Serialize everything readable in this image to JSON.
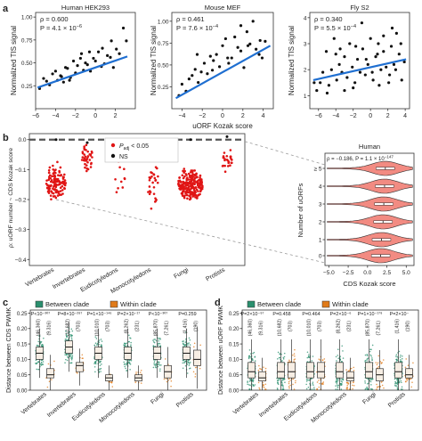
{
  "panels": {
    "a": {
      "letter": "a",
      "xlabel": "uORF Kozak score",
      "ylabel": "Normalized TIS signal",
      "subplots": [
        {
          "title": "Human HEK293",
          "rho": "ρ = 0.600",
          "p_prefix": "P = 4.1 × 10",
          "p_exp": "−6",
          "xlim": [
            -6,
            4
          ],
          "xticks": [
            -6,
            -4,
            -2,
            0,
            2
          ],
          "ylim": [
            0,
            1.05
          ],
          "yticks": [
            0.25,
            0.5,
            0.75,
            1.0
          ],
          "ytick_labels": [
            "0.25",
            "0.50",
            "0.75",
            "1.00"
          ],
          "fit": [
            [
              -5.8,
              0.23
            ],
            [
              3.2,
              0.57
            ]
          ]
        },
        {
          "title": "Mouse MEF",
          "rho": "ρ = 0.461",
          "p_prefix": "P = 7.6 × 10",
          "p_exp": "−4",
          "xlim": [
            -5,
            5
          ],
          "xticks": [
            -4,
            -2,
            0,
            2,
            4
          ],
          "ylim": [
            0,
            1.1
          ],
          "yticks": [
            0.25,
            0.5,
            0.75,
            1.0
          ],
          "ytick_labels": [
            "0.25",
            "0.50",
            "0.75",
            "1.00"
          ],
          "fit": [
            [
              -4.6,
              0.12
            ],
            [
              4.7,
              0.72
            ]
          ]
        },
        {
          "title": "Fly S2",
          "rho": "ρ = 0.340",
          "p_prefix": "P = 5.5 × 10",
          "p_exp": "−4",
          "xlim": [
            -7,
            4.5
          ],
          "xticks": [
            -6,
            -4,
            -2,
            0,
            2,
            4
          ],
          "ylim": [
            0.5,
            4.2
          ],
          "yticks": [
            1,
            2,
            3,
            4
          ],
          "ytick_labels": [
            "1",
            "2",
            "3",
            "4"
          ],
          "fit": [
            [
              -6.6,
              1.6
            ],
            [
              4.1,
              2.4
            ]
          ]
        }
      ]
    },
    "b": {
      "letter": "b",
      "ylabel": "ρ: uORF number ~ CDS Kozak score",
      "yticks": [
        "0.0",
        "−0.1",
        "−0.2",
        "−0.3",
        "−0.4"
      ],
      "legend_padj": "P",
      "legend_padj_sub": "adj",
      "legend_padj_rest": " < 0.05",
      "legend_ns": "NS",
      "groups": [
        "Vertebrates",
        "Invertebrates",
        "Eudicotyledons",
        "Monocotyledons",
        "Fungi",
        "Protists"
      ],
      "inset": {
        "title": "Human",
        "stat": "ρ = −0.186,  P = 1.1 × 10",
        "stat_exp": "−147",
        "xlabel": "CDS Kozak score",
        "ylabel": "Number of uORFs",
        "yticks": [
          "≥ 5",
          "4",
          "3",
          "2",
          "1",
          "0"
        ],
        "xticks": [
          "−5.0",
          "−2.5",
          "0.0",
          "2.5",
          "5.0"
        ]
      }
    },
    "c": {
      "letter": "c",
      "ylabel": "Distance between CDS PWMK",
      "legend_between": "Between clade",
      "legend_within": "Within clade",
      "yticks": [
        "0.00",
        "0.05",
        "0.10",
        "0.15",
        "0.20",
        "0.25"
      ],
      "groups": [
        "Vertebrates",
        "Invertebrates",
        "Eudicotyledons",
        "Monocotyledons",
        "Fungi",
        "Protists"
      ],
      "pvalues": [
        "P<10⁻³⁰⁷",
        "P=8×10⁻²⁹⁷",
        "P=1×10⁻¹⁴⁶",
        "P=2×10⁻¹⁷",
        "P<10⁻³⁰⁷",
        "P=0.259"
      ],
      "counts_between": [
        "(46,360)",
        "(10,682)",
        "(10,010)",
        "(8,262)",
        "(85,870)",
        "(1,416)"
      ],
      "counts_within": [
        "(9,316)",
        "(703)",
        "(703)",
        "(231)",
        "(7,261)",
        "(190)"
      ]
    },
    "d": {
      "letter": "d",
      "ylabel": "Distance between uORF PWMK",
      "legend_between": "Between clade",
      "legend_within": "Within clade",
      "yticks": [
        "0.00",
        "0.05",
        "0.10",
        "0.15",
        "0.20",
        "0.25"
      ],
      "groups": [
        "Vertebrates",
        "Invertebrates",
        "Eudicotyledons",
        "Monocotyledons",
        "Fungi",
        "Protists"
      ],
      "pvalues": [
        "P=2×10⁻⁹⁷",
        "P=0.458",
        "P=0.464",
        "P=2×10⁻⁶",
        "P=1×10⁻¹⁷⁹",
        "P=2×10⁻"
      ],
      "counts_between": [
        "(46,360)",
        "(10,682)",
        "(10,010)",
        "(8,262)",
        "(85,870)",
        "(1,416)"
      ],
      "counts_within": [
        "(9,316)",
        "(703)",
        "(703)",
        "(231)",
        "(7,261)",
        "(190)"
      ]
    }
  },
  "colors": {
    "blue": "#1f6fd1",
    "red": "#e01515",
    "black": "#111111",
    "salmon": "#f28b82",
    "green": "#2a8f6e",
    "orange": "#e07b1a",
    "box_fill": "#f7eee4",
    "grey": "#9a9a9a"
  },
  "chart_data": [
    {
      "type": "scatter",
      "title": "Human HEK293",
      "xlabel": "uORF Kozak score",
      "ylabel": "Normalized TIS signal",
      "series": [
        {
          "name": "",
          "x": [
            -5.6,
            -5.2,
            -4.9,
            -4.6,
            -4.3,
            -4.0,
            -3.8,
            -3.5,
            -3.2,
            -3.0,
            -2.8,
            -2.5,
            -2.2,
            -2.0,
            -1.8,
            -1.5,
            -1.2,
            -1.0,
            -0.8,
            -0.5,
            -0.2,
            0.0,
            0.3,
            0.6,
            0.9,
            1.2,
            1.5,
            1.8,
            2.1,
            2.4,
            2.8,
            3.1,
            -1.4,
            -0.6,
            0.7,
            1.6,
            -2.6,
            -3.4
          ],
          "y": [
            0.22,
            0.33,
            0.3,
            0.26,
            0.38,
            0.41,
            0.31,
            0.36,
            0.29,
            0.45,
            0.44,
            0.34,
            0.52,
            0.39,
            0.47,
            0.55,
            0.42,
            0.5,
            0.48,
            0.41,
            0.55,
            0.52,
            0.62,
            0.46,
            0.49,
            0.58,
            0.56,
            0.45,
            0.65,
            0.6,
            0.88,
            0.74,
            0.6,
            0.62,
            0.66,
            0.74,
            0.31,
            0.35
          ]
        }
      ]
    },
    {
      "type": "scatter",
      "title": "Mouse MEF",
      "xlabel": "uORF Kozak score",
      "ylabel": "Normalized TIS signal",
      "series": [
        {
          "name": "",
          "x": [
            -4.3,
            -4.0,
            -3.6,
            -3.3,
            -3.0,
            -2.7,
            -2.4,
            -2.1,
            -1.8,
            -1.5,
            -1.2,
            -0.9,
            -0.6,
            -0.3,
            0.0,
            0.3,
            0.6,
            0.9,
            1.2,
            1.5,
            1.8,
            2.1,
            2.4,
            2.7,
            3.0,
            3.3,
            3.6,
            3.9,
            4.2,
            -1.0,
            0.5,
            1.8,
            -2.5,
            2.5,
            3.7
          ],
          "y": [
            0.15,
            0.28,
            0.2,
            0.34,
            0.38,
            0.45,
            0.3,
            0.42,
            0.52,
            0.4,
            0.6,
            0.55,
            0.62,
            0.48,
            0.72,
            0.8,
            0.52,
            0.58,
            0.82,
            0.7,
            0.66,
            0.47,
            0.88,
            0.74,
            1.0,
            0.68,
            0.62,
            0.58,
            0.77,
            0.44,
            0.58,
            0.95,
            0.62,
            0.72,
            0.78
          ]
        }
      ]
    },
    {
      "type": "scatter",
      "title": "Fly S2",
      "xlabel": "uORF Kozak score",
      "ylabel": "Normalized TIS signal",
      "series": [
        {
          "name": "",
          "x": [
            -6.2,
            -5.8,
            -5.5,
            -5.1,
            -4.8,
            -4.5,
            -4.2,
            -3.9,
            -3.6,
            -3.3,
            -3.0,
            -2.7,
            -2.4,
            -2.1,
            -1.8,
            -1.5,
            -1.2,
            -0.9,
            -0.6,
            -0.3,
            0.0,
            0.3,
            0.6,
            0.9,
            1.2,
            1.5,
            1.8,
            2.1,
            2.4,
            2.7,
            3.0,
            3.3,
            3.6,
            3.9,
            -5.0,
            -3.0,
            -1.0,
            0.8,
            2.2,
            -4.0,
            -2.0,
            1.5,
            3.5,
            -0.5,
            2.9,
            -6.5,
            -3.5,
            0.2,
            1.0,
            -1.7,
            2.5
          ],
          "y": [
            1.2,
            1.5,
            1.9,
            2.7,
            1.4,
            2.0,
            3.2,
            1.6,
            2.2,
            1.9,
            2.5,
            1.7,
            3.0,
            2.1,
            1.5,
            2.4,
            1.9,
            2.8,
            1.8,
            2.2,
            3.2,
            1.6,
            2.5,
            3.0,
            2.0,
            3.3,
            2.1,
            1.5,
            2.9,
            2.2,
            3.4,
            2.6,
            1.6,
            2.3,
            1.1,
            1.2,
            3.8,
            2.6,
            1.8,
            2.6,
            1.3,
            2.7,
            3.0,
            2.4,
            2.0,
            1.5,
            2.8,
            1.9,
            1.4,
            2.9,
            3.6
          ]
        }
      ]
    },
    {
      "type": "scatter",
      "title": "",
      "ylabel": "ρ: uORF number ~ CDS Kozak score",
      "categories": [
        "Vertebrates",
        "Invertebrates",
        "Eudicotyledons",
        "Monocotyledons",
        "Fungi",
        "Protists"
      ],
      "series": [
        {
          "name": "Padj < 0.05",
          "median": [
            -0.14,
            -0.06,
            -0.13,
            -0.15,
            -0.15,
            -0.07
          ],
          "min": [
            -0.38,
            -0.16,
            -0.21,
            -0.38,
            -0.35,
            -0.2
          ],
          "max": [
            -0.03,
            0.0,
            -0.03,
            -0.04,
            -0.04,
            -0.03
          ]
        },
        {
          "name": "NS",
          "values": [
            0.0,
            -0.01,
            0.0,
            0.0,
            0.0,
            0.01
          ]
        }
      ],
      "ylim": [
        -0.42,
        0.02
      ]
    },
    {
      "type": "violin",
      "title": "Human",
      "xlabel": "CDS Kozak score",
      "ylabel": "Number of uORFs",
      "categories": [
        "0",
        "1",
        "2",
        "3",
        "4",
        "≥ 5"
      ],
      "medians": [
        1.7,
        1.8,
        2.0,
        2.1,
        2.2,
        2.3
      ],
      "xlim": [
        -5.5,
        6
      ]
    },
    {
      "type": "box",
      "title": "",
      "ylabel": "Distance between CDS PWMK",
      "categories": [
        "Vertebrates",
        "Invertebrates",
        "Eudicotyledons",
        "Monocotyledons",
        "Fungi",
        "Protists"
      ],
      "series": [
        {
          "name": "Between clade",
          "median": [
            0.12,
            0.14,
            0.12,
            0.12,
            0.12,
            0.12
          ],
          "q1": [
            0.1,
            0.12,
            0.1,
            0.1,
            0.1,
            0.1
          ],
          "q3": [
            0.14,
            0.16,
            0.14,
            0.14,
            0.14,
            0.14
          ]
        },
        {
          "name": "Within clade",
          "median": [
            0.05,
            0.08,
            0.04,
            0.04,
            0.06,
            0.1
          ],
          "q1": [
            0.04,
            0.06,
            0.03,
            0.03,
            0.04,
            0.08
          ],
          "q3": [
            0.07,
            0.09,
            0.05,
            0.05,
            0.08,
            0.13
          ]
        }
      ],
      "ylim": [
        0,
        0.25
      ]
    },
    {
      "type": "box",
      "title": "",
      "ylabel": "Distance between uORF PWMK",
      "categories": [
        "Vertebrates",
        "Invertebrates",
        "Eudicotyledons",
        "Monocotyledons",
        "Fungi",
        "Protists"
      ],
      "series": [
        {
          "name": "Between clade",
          "median": [
            0.06,
            0.06,
            0.06,
            0.06,
            0.06,
            0.06
          ],
          "q1": [
            0.04,
            0.04,
            0.04,
            0.04,
            0.04,
            0.04
          ],
          "q3": [
            0.09,
            0.09,
            0.09,
            0.09,
            0.09,
            0.09
          ]
        },
        {
          "name": "Within clade",
          "median": [
            0.04,
            0.06,
            0.06,
            0.04,
            0.05,
            0.05
          ],
          "q1": [
            0.03,
            0.04,
            0.04,
            0.03,
            0.03,
            0.04
          ],
          "q3": [
            0.06,
            0.09,
            0.09,
            0.06,
            0.07,
            0.07
          ]
        }
      ],
      "ylim": [
        0,
        0.25
      ]
    }
  ]
}
